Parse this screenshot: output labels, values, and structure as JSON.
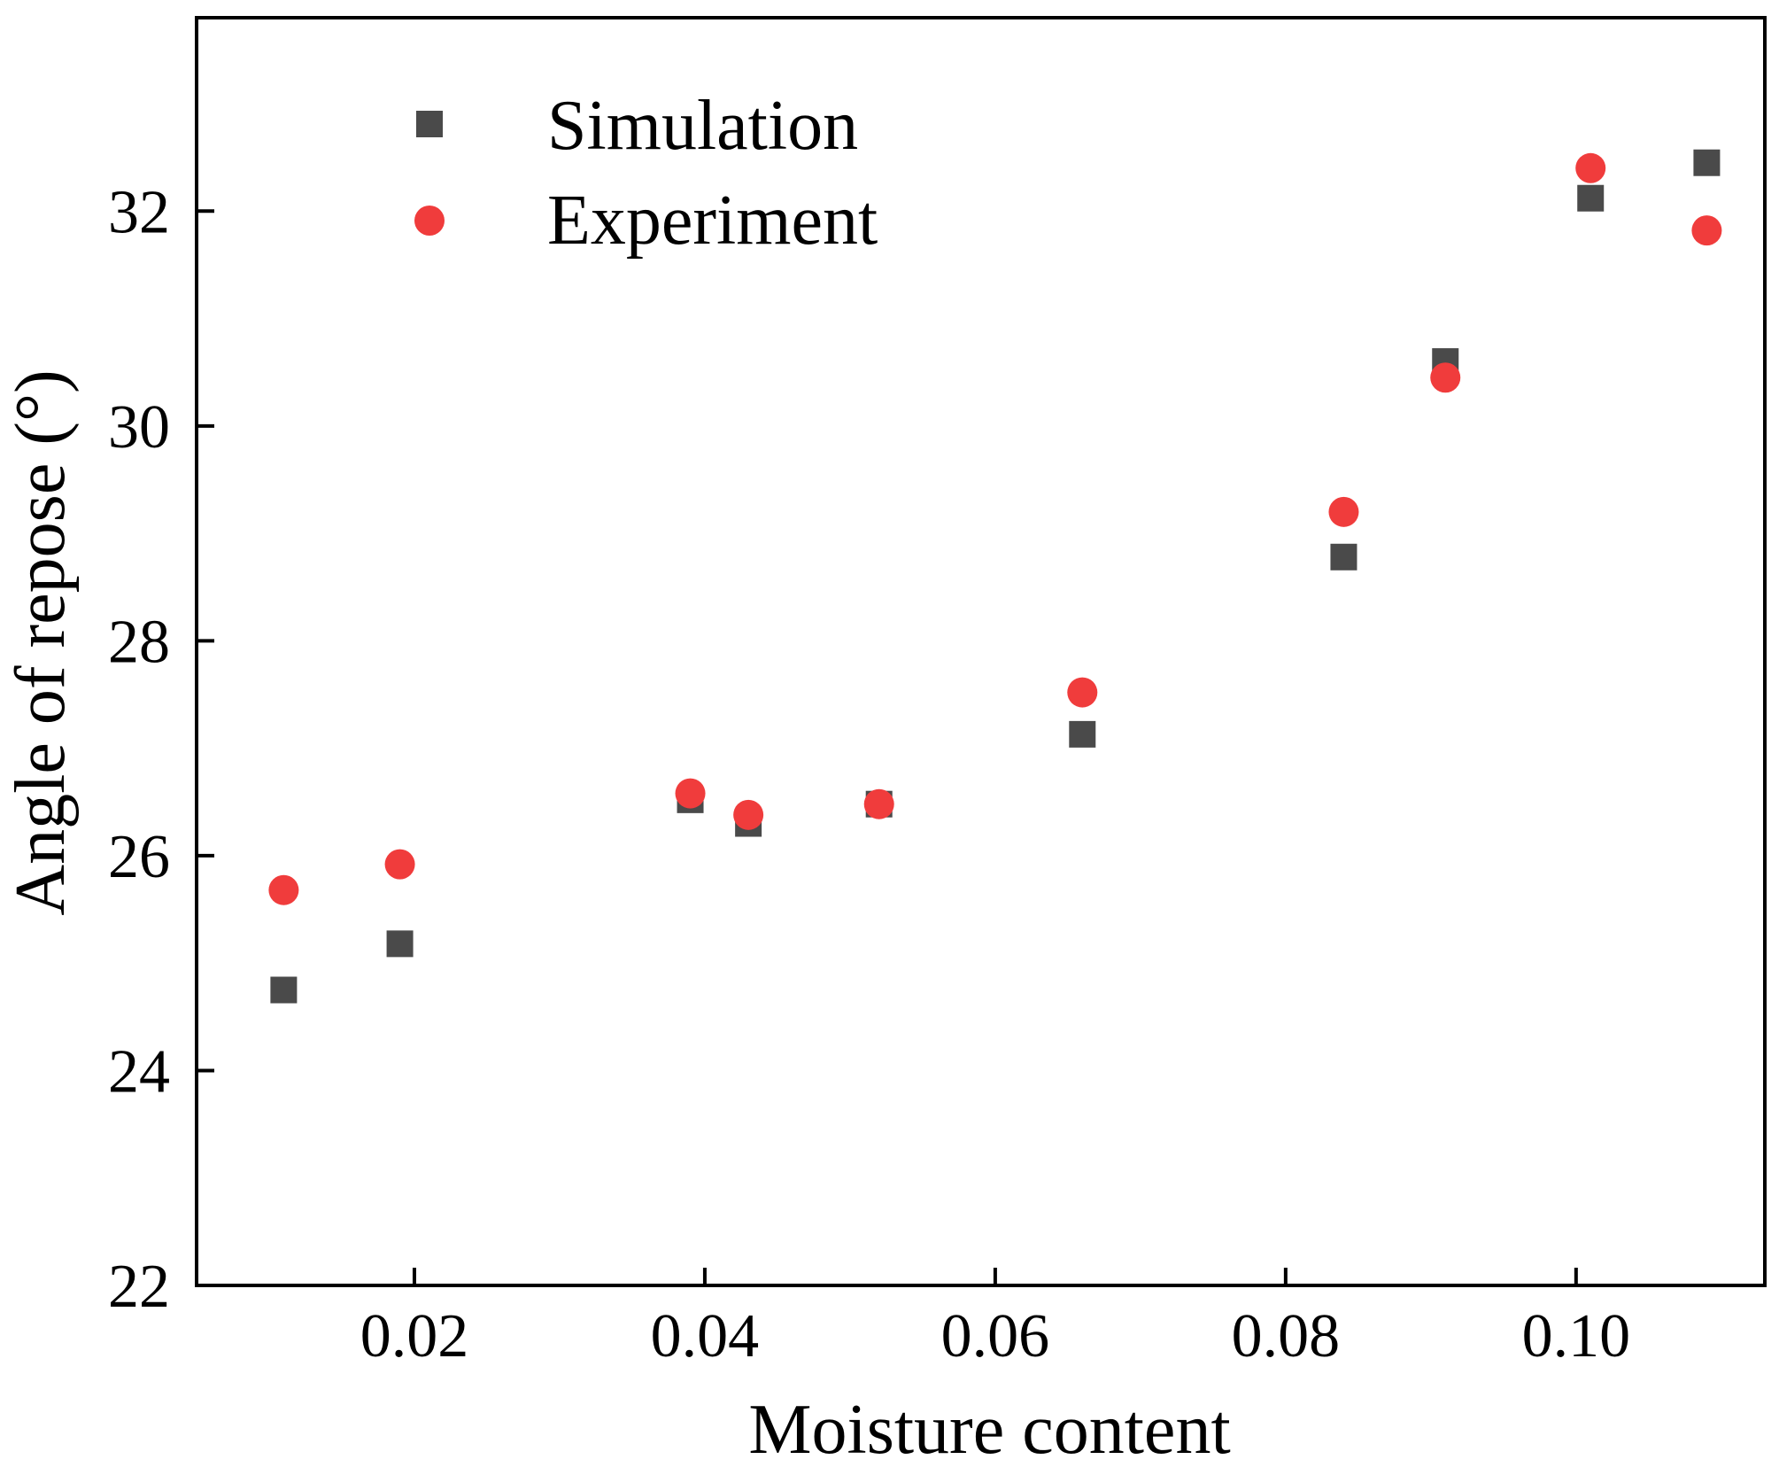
{
  "chart_data": {
    "type": "scatter",
    "title": "",
    "xlabel": "Moisture content",
    "ylabel": "Angle of repose (°)",
    "xlim": [
      0.005,
      0.113
    ],
    "ylim": [
      22,
      33.8
    ],
    "xticks": [
      0.02,
      0.04,
      0.06,
      0.08,
      0.1
    ],
    "xtick_labels": [
      "0.02",
      "0.04",
      "0.06",
      "0.08",
      "0.10"
    ],
    "yticks": [
      22,
      24,
      26,
      28,
      30,
      32
    ],
    "ytick_labels": [
      "22",
      "24",
      "26",
      "28",
      "30",
      "32"
    ],
    "grid": false,
    "legend_position": "top-left",
    "series": [
      {
        "name": "Simulation",
        "marker": "square",
        "color": "#4a4a4a",
        "x": [
          0.011,
          0.019,
          0.039,
          0.043,
          0.052,
          0.066,
          0.084,
          0.091,
          0.101,
          0.109
        ],
        "y": [
          24.75,
          25.18,
          26.52,
          26.3,
          26.48,
          27.13,
          28.78,
          30.6,
          32.12,
          32.45
        ]
      },
      {
        "name": "Experiment",
        "marker": "circle",
        "color": "#f03c3c",
        "x": [
          0.011,
          0.019,
          0.039,
          0.043,
          0.052,
          0.066,
          0.084,
          0.091,
          0.101,
          0.109
        ],
        "y": [
          25.68,
          25.92,
          26.58,
          26.38,
          26.48,
          27.52,
          29.2,
          30.45,
          32.4,
          31.82
        ]
      }
    ]
  }
}
